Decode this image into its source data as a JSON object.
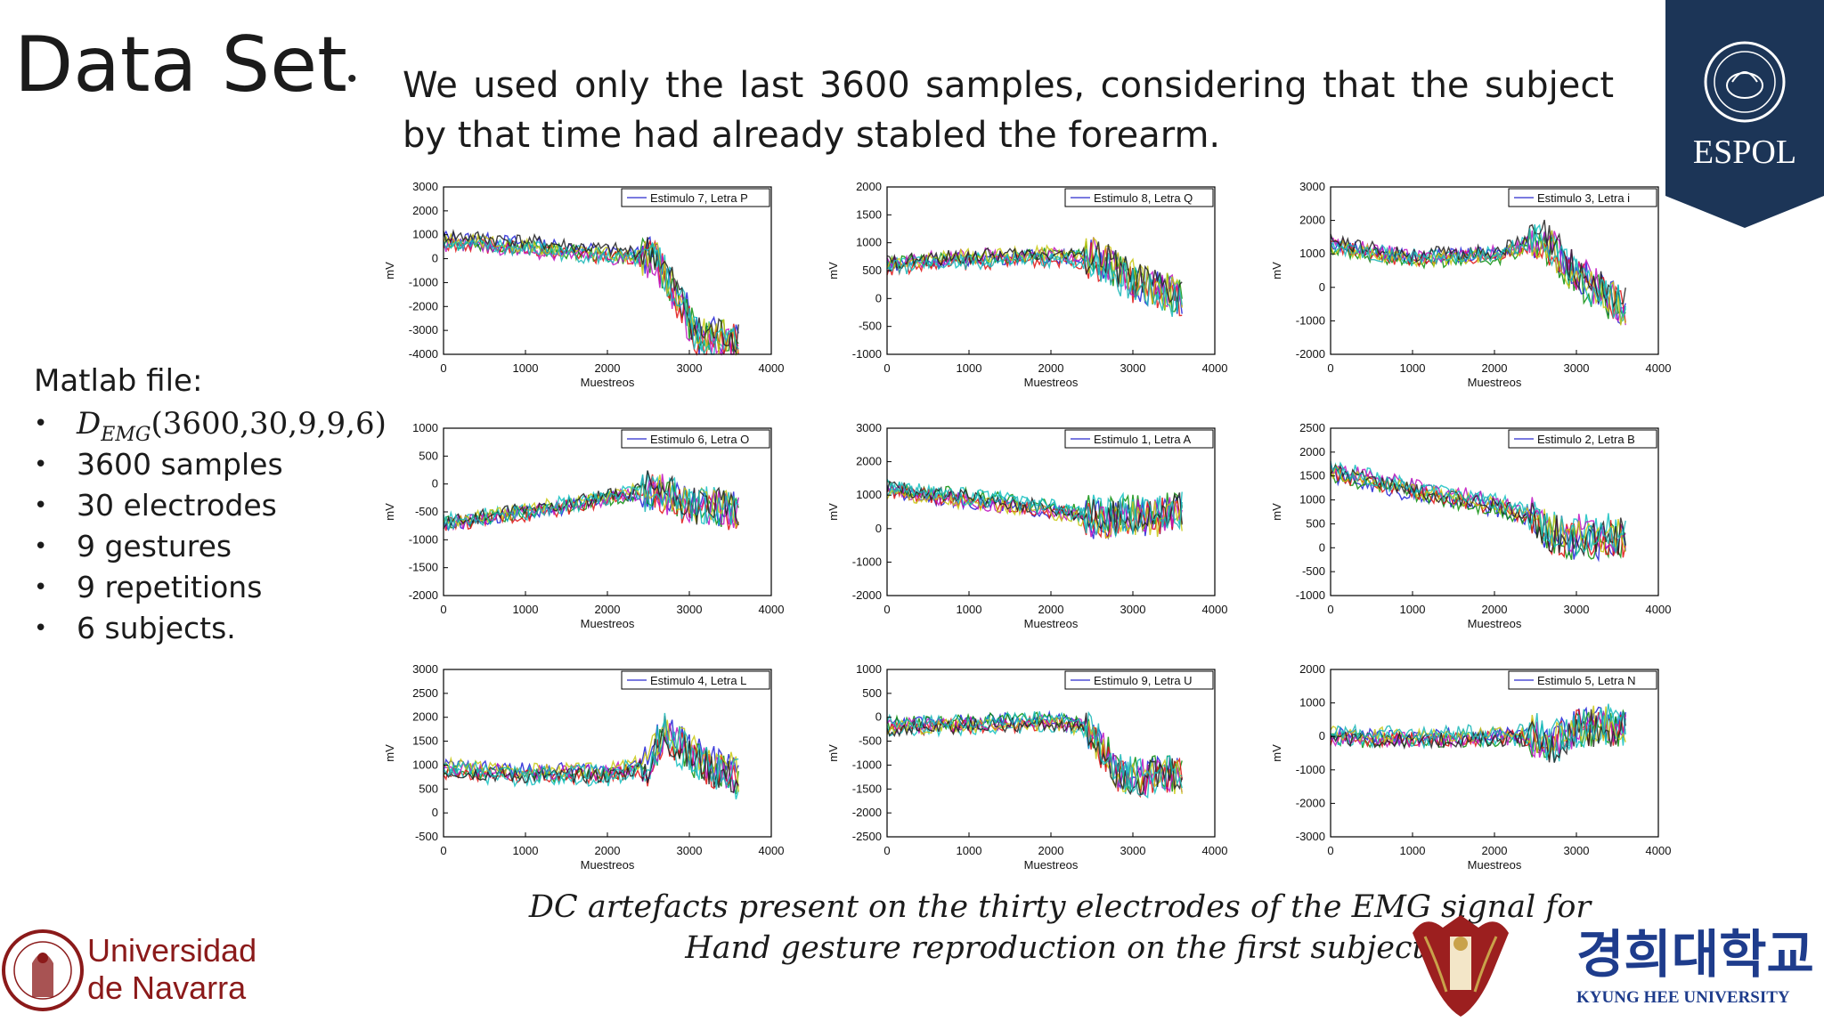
{
  "slide": {
    "title": "Data Set",
    "bullet_main": "We used only the last 3600 samples, considering that the subject by that time had already stabled the forearm.",
    "matlab_label": "Matlab file:",
    "demg": {
      "symbol": "D",
      "subscript": "EMG",
      "args": "(3600,30,9,9,6)"
    },
    "bullets": [
      "3600 samples",
      "30 electrodes",
      "9 gestures",
      "9 repetitions",
      "6 subjects."
    ],
    "caption": "DC artefacts present on the thirty electrodes of the EMG signal for Hand gesture reproduction on the first subject."
  },
  "logos": {
    "espol": {
      "text": "ESPOL",
      "color": "#1c3557"
    },
    "navarra": {
      "line1": "Universidad",
      "line2": "de Navarra",
      "color": "#8b1a1a"
    },
    "kyunghee": {
      "korean": "경희대학교",
      "english": "KYUNG HEE UNIVERSITY",
      "color": "#1e3c8c"
    }
  },
  "chart_data": [
    {
      "type": "line",
      "legend": "Estimulo 7, Letra P",
      "xlabel": "Muestreos",
      "ylabel": "mV",
      "xlim": [
        0,
        4000
      ],
      "xticks": [
        0,
        1000,
        2000,
        3000,
        4000
      ],
      "ylim": [
        -4000,
        3000
      ],
      "yticks": [
        3000,
        2000,
        1000,
        0,
        -1000,
        -2000,
        -3000,
        -4000
      ],
      "series": [
        {
          "x": [
            0,
            1000,
            2000,
            2600,
            3000,
            3100,
            3600
          ],
          "y": [
            800,
            550,
            200,
            50,
            -2500,
            -3300,
            -3300
          ]
        }
      ]
    },
    {
      "type": "line",
      "legend": "Estimulo 8, Letra Q",
      "xlabel": "Muestreos",
      "ylabel": "mV",
      "xlim": [
        0,
        4000
      ],
      "xticks": [
        0,
        1000,
        2000,
        3000,
        4000
      ],
      "ylim": [
        -1000,
        2000
      ],
      "yticks": [
        2000,
        1500,
        1000,
        500,
        0,
        -500,
        -1000
      ],
      "series": [
        {
          "x": [
            0,
            1000,
            2000,
            2600,
            3000,
            3600
          ],
          "y": [
            600,
            700,
            750,
            700,
            300,
            0
          ]
        }
      ]
    },
    {
      "type": "line",
      "legend": "Estimulo 3, Letra i",
      "xlabel": "Muestreos",
      "ylabel": "mV",
      "xlim": [
        0,
        4000
      ],
      "xticks": [
        0,
        1000,
        2000,
        3000,
        4000
      ],
      "ylim": [
        -2000,
        3000
      ],
      "yticks": [
        3000,
        2000,
        1000,
        0,
        -1000,
        -2000
      ],
      "series": [
        {
          "x": [
            0,
            1000,
            2000,
            2600,
            3000,
            3600
          ],
          "y": [
            1300,
            900,
            1000,
            1500,
            400,
            -600
          ]
        }
      ]
    },
    {
      "type": "line",
      "legend": "Estimulo 6, Letra O",
      "xlabel": "Muestreos",
      "ylabel": "mV",
      "xlim": [
        0,
        4000
      ],
      "xticks": [
        0,
        1000,
        2000,
        3000,
        4000
      ],
      "ylim": [
        -2000,
        1000
      ],
      "yticks": [
        1000,
        500,
        0,
        -500,
        -1000,
        -1500,
        -2000
      ],
      "series": [
        {
          "x": [
            0,
            1000,
            2000,
            2600,
            3000,
            3600
          ],
          "y": [
            -700,
            -500,
            -250,
            -100,
            -400,
            -450
          ]
        }
      ]
    },
    {
      "type": "line",
      "legend": "Estimulo 1, Letra A",
      "xlabel": "Muestreos",
      "ylabel": "mV",
      "xlim": [
        0,
        4000
      ],
      "xticks": [
        0,
        1000,
        2000,
        3000,
        4000
      ],
      "ylim": [
        -2000,
        3000
      ],
      "yticks": [
        3000,
        2000,
        1000,
        0,
        -1000,
        -2000
      ],
      "series": [
        {
          "x": [
            0,
            1000,
            2000,
            2400,
            2700,
            3000,
            3600
          ],
          "y": [
            1200,
            900,
            600,
            400,
            300,
            400,
            500
          ]
        }
      ]
    },
    {
      "type": "line",
      "legend": "Estimulo 2, Letra B",
      "xlabel": "Muestreos",
      "ylabel": "mV",
      "xlim": [
        0,
        4000
      ],
      "xticks": [
        0,
        1000,
        2000,
        3000,
        4000
      ],
      "ylim": [
        -1000,
        2500
      ],
      "yticks": [
        2500,
        2000,
        1500,
        1000,
        500,
        0,
        -500,
        -1000
      ],
      "series": [
        {
          "x": [
            0,
            1000,
            2000,
            2400,
            2700,
            3000,
            3600
          ],
          "y": [
            1600,
            1200,
            900,
            700,
            300,
            200,
            250
          ]
        }
      ]
    },
    {
      "type": "line",
      "legend": "Estimulo 4, Letra L",
      "xlabel": "Muestreos",
      "ylabel": "mV",
      "xlim": [
        0,
        4000
      ],
      "xticks": [
        0,
        1000,
        2000,
        3000,
        4000
      ],
      "ylim": [
        -500,
        3000
      ],
      "yticks": [
        3000,
        2500,
        2000,
        1500,
        1000,
        500,
        0,
        -500
      ],
      "series": [
        {
          "x": [
            0,
            1000,
            2000,
            2500,
            2700,
            3000,
            3600
          ],
          "y": [
            900,
            800,
            800,
            1000,
            1700,
            1200,
            700
          ]
        }
      ]
    },
    {
      "type": "line",
      "legend": "Estimulo 9, Letra U",
      "xlabel": "Muestreos",
      "ylabel": "mV",
      "xlim": [
        0,
        4000
      ],
      "xticks": [
        0,
        1000,
        2000,
        3000,
        4000
      ],
      "ylim": [
        -2500,
        1000
      ],
      "yticks": [
        1000,
        500,
        0,
        -500,
        -1000,
        -1500,
        -2000,
        -2500
      ],
      "series": [
        {
          "x": [
            0,
            1000,
            2000,
            2400,
            2800,
            3000,
            3600
          ],
          "y": [
            -200,
            -150,
            -100,
            -200,
            -1100,
            -1300,
            -1200
          ]
        }
      ]
    },
    {
      "type": "line",
      "legend": "Estimulo 5, Letra N",
      "xlabel": "Muestreos",
      "ylabel": "mV",
      "xlim": [
        0,
        4000
      ],
      "xticks": [
        0,
        1000,
        2000,
        3000,
        4000
      ],
      "ylim": [
        -3000,
        2000
      ],
      "yticks": [
        2000,
        1000,
        0,
        -1000,
        -2000,
        -3000
      ],
      "series": [
        {
          "x": [
            0,
            1000,
            2000,
            2500,
            2700,
            3000,
            3600
          ],
          "y": [
            0,
            -50,
            0,
            0,
            -300,
            300,
            300
          ]
        }
      ]
    }
  ]
}
